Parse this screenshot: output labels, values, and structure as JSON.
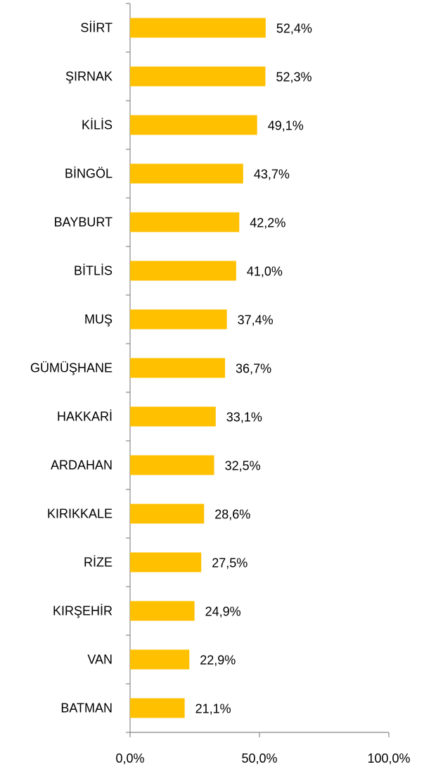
{
  "chart_data": {
    "type": "barh",
    "categories": [
      "SİİRT",
      "ŞIRNAK",
      "KİLİS",
      "BİNGÖL",
      "BAYBURT",
      "BİTLİS",
      "MUŞ",
      "GÜMÜŞHANE",
      "HAKKARİ",
      "ARDAHAN",
      "KIRIKKALE",
      "RİZE",
      "KIRŞEHİR",
      "VAN",
      "BATMAN"
    ],
    "values": [
      52.4,
      52.3,
      49.1,
      43.7,
      42.2,
      41.0,
      37.4,
      36.7,
      33.1,
      32.5,
      28.6,
      27.5,
      24.9,
      22.9,
      21.1
    ],
    "value_labels": [
      "52,4%",
      "52,3%",
      "49,1%",
      "43,7%",
      "42,2%",
      "41,0%",
      "37,4%",
      "36,7%",
      "33,1%",
      "32,5%",
      "28,6%",
      "27,5%",
      "24,9%",
      "22,9%",
      "21,1%"
    ],
    "color": "#ffc000",
    "xlim": [
      0,
      100
    ],
    "xticks": [
      {
        "value": 0,
        "label": "0,0%"
      },
      {
        "value": 50,
        "label": "50,0%"
      },
      {
        "value": 100,
        "label": "100,0%"
      }
    ],
    "grid": false
  }
}
